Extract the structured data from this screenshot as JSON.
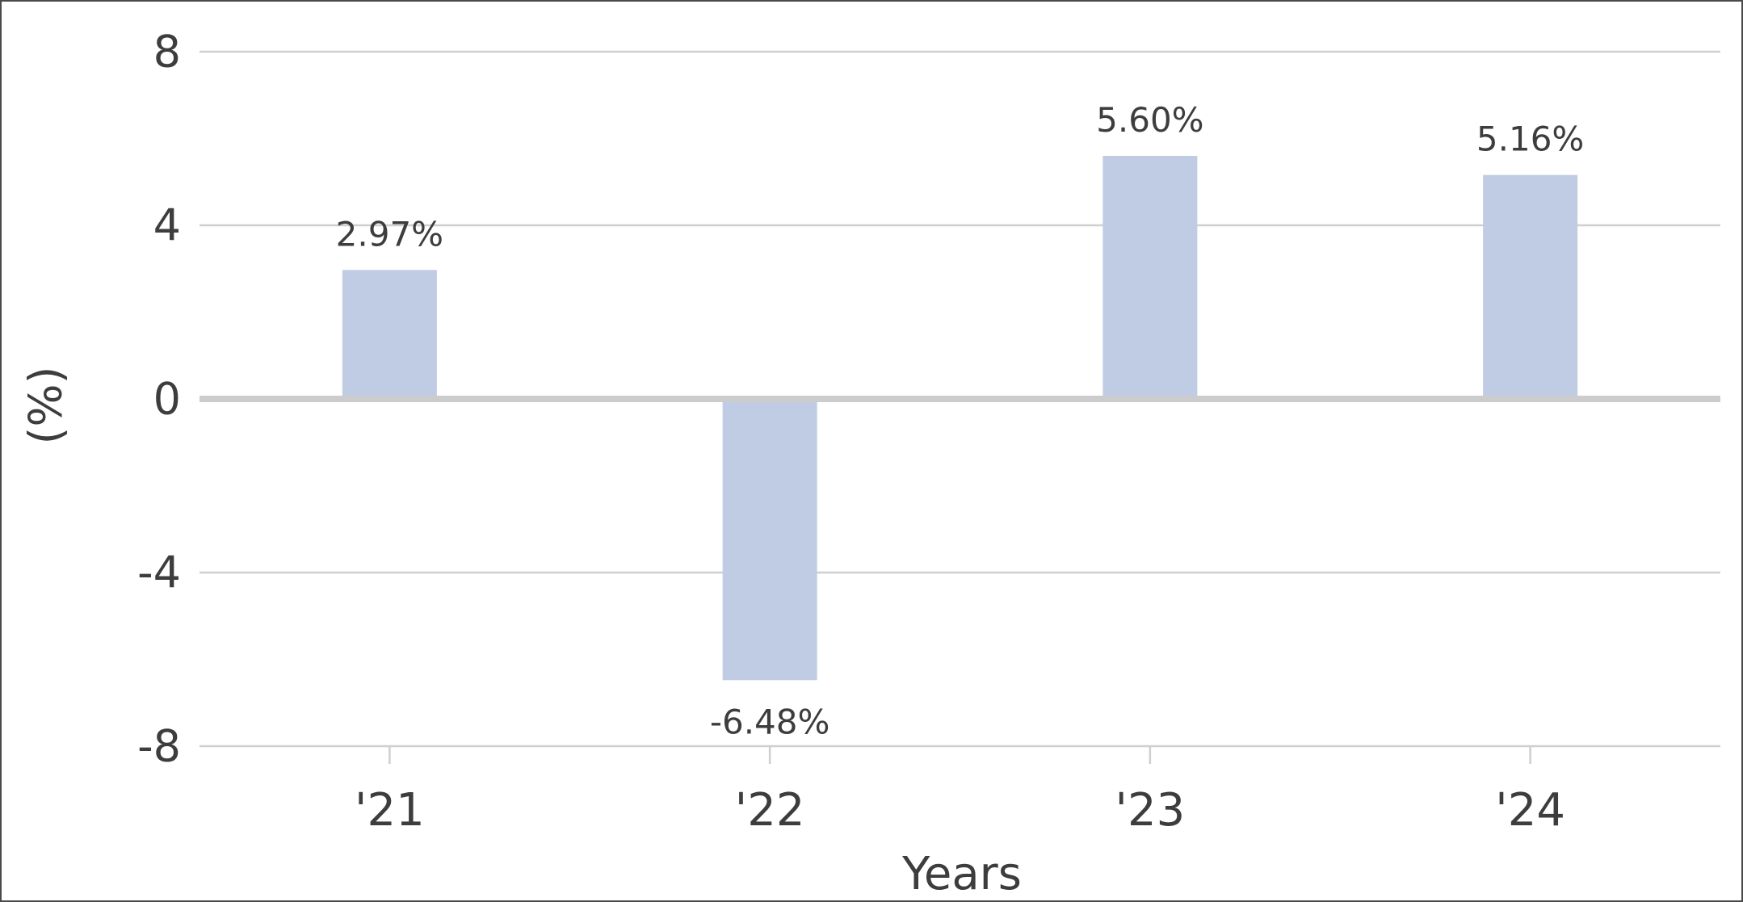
{
  "chart_data": {
    "type": "bar",
    "categories": [
      "'21",
      "'22",
      "'23",
      "'24"
    ],
    "values": [
      2.97,
      -6.48,
      5.6,
      5.16
    ],
    "data_labels": [
      "2.97%",
      "-6.48%",
      "5.60%",
      "5.16%"
    ],
    "title": "",
    "xlabel": "Years",
    "ylabel": "(%)",
    "ylim": [
      -8,
      8
    ],
    "yticks": [
      8,
      4,
      0,
      -4,
      -8
    ],
    "ytick_labels": [
      "8",
      "4",
      "0",
      "-4",
      "-8"
    ],
    "grid": true,
    "legend": "none",
    "colors": {
      "bar": "#c0cce3",
      "grid": "#cfcfcf",
      "zero_line": "#cccccc",
      "text": "#3d3d3d",
      "frame": "#4a4a4a"
    }
  }
}
